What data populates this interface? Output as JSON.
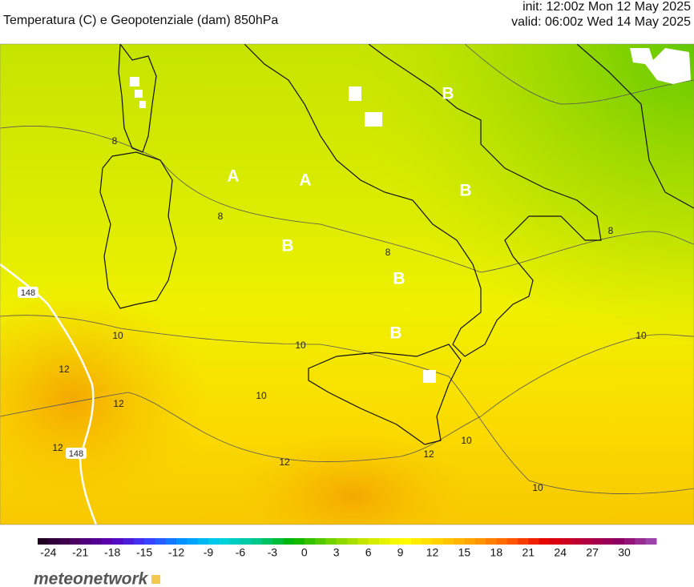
{
  "header": {
    "title": "Temperatura (C) e Geopotenziale (dam) 850hPa",
    "init": "init: 12:00z Mon 12 May 2025",
    "valid": "valid: 06:00z Wed 14 May 2025"
  },
  "map": {
    "labels": [
      "A",
      "A",
      "B",
      "B",
      "B",
      "B",
      "B",
      "8",
      "8",
      "8",
      "8",
      "10",
      "10",
      "10",
      "10",
      "10",
      "10",
      "12",
      "12",
      "12",
      "12",
      "12",
      "148",
      "148"
    ]
  },
  "colorbar": {
    "lim": [
      -25,
      33
    ],
    "ticks": [
      -24,
      -21,
      -18,
      -15,
      -12,
      -9,
      -6,
      -3,
      0,
      3,
      6,
      9,
      12,
      15,
      18,
      21,
      24,
      27,
      30
    ],
    "colors": [
      "#1a001a",
      "#4b0060",
      "#5a00b4",
      "#3c3cff",
      "#0096ff",
      "#00d2e6",
      "#00c88c",
      "#00b400",
      "#6ed200",
      "#c8e600",
      "#ffff00",
      "#ffd200",
      "#ffa000",
      "#ff5a00",
      "#e60000",
      "#b4003c",
      "#8c0064",
      "#a050b4"
    ]
  },
  "logo": "meteonetwork"
}
